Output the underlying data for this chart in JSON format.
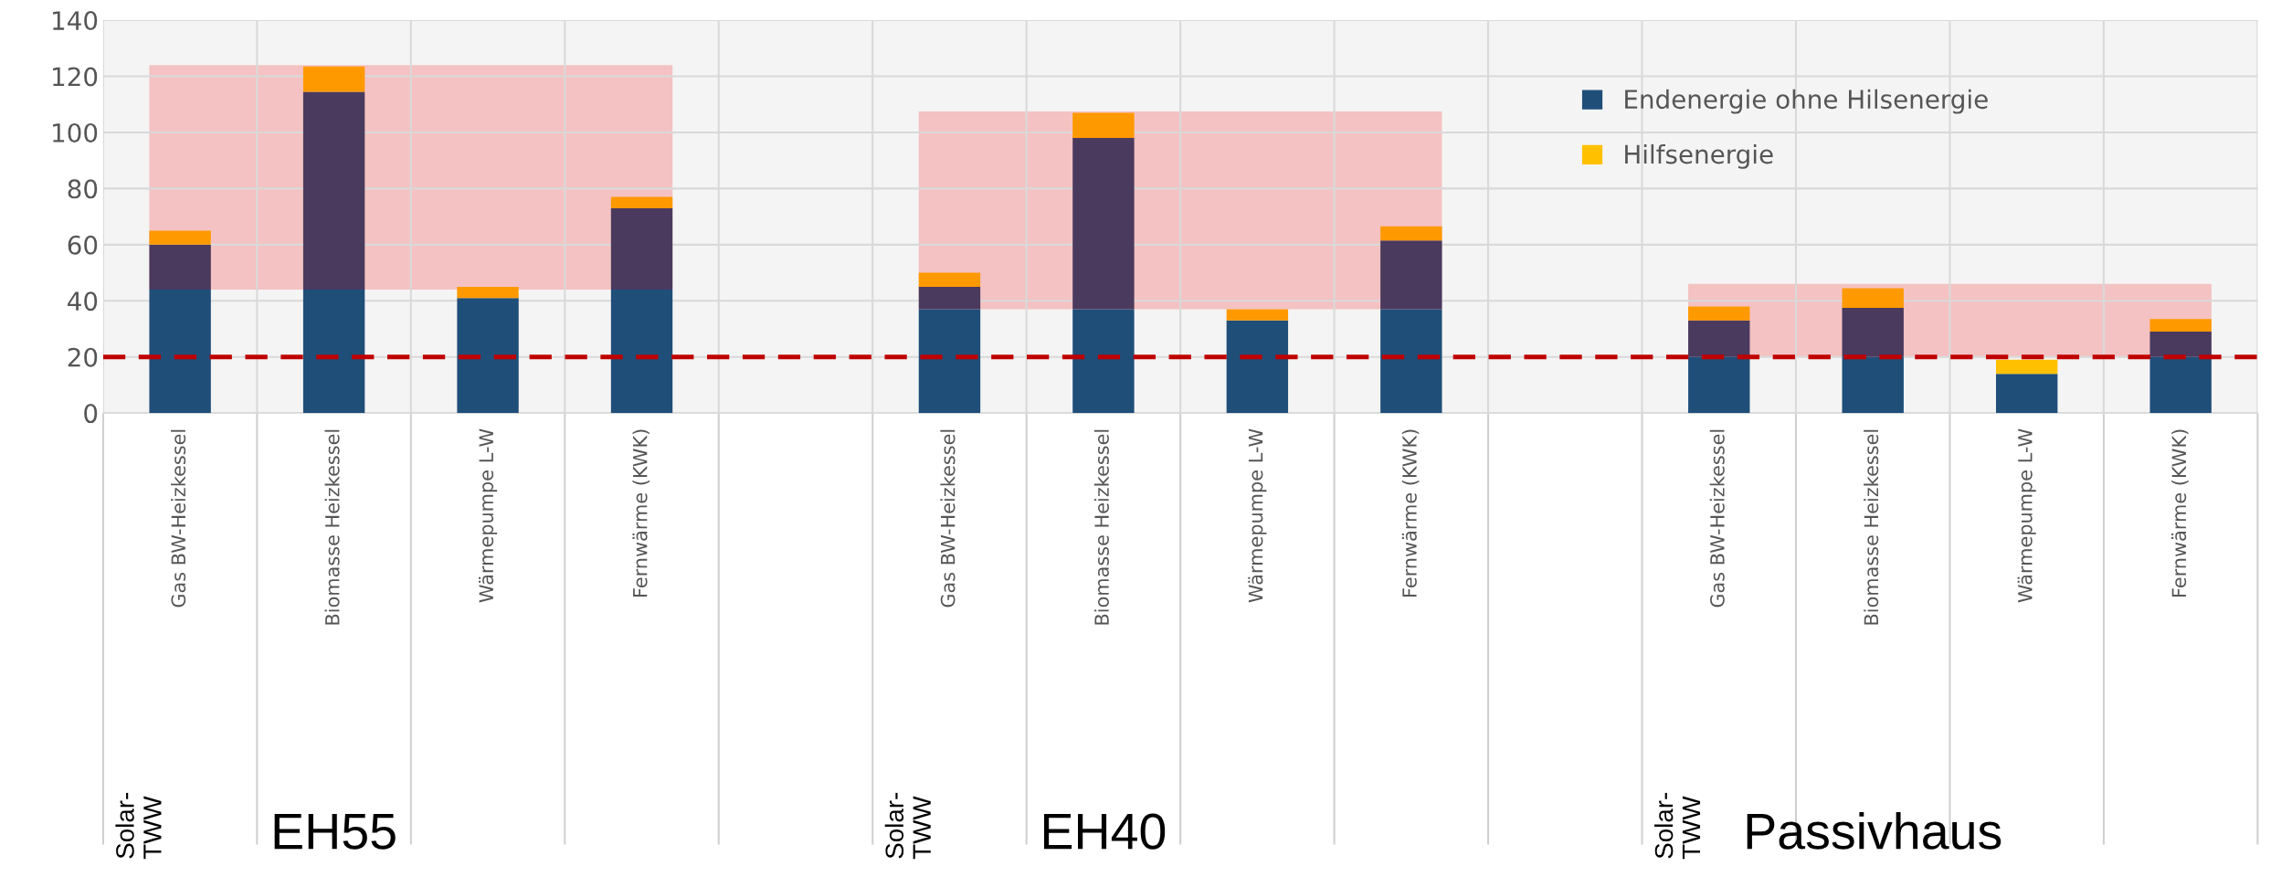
{
  "chart_data": {
    "type": "bar",
    "stacked": true,
    "categories": [
      "Gas BW-Heizkessel",
      "Biomasse Heizkessel",
      "Wärmepumpe L-W",
      "Fernwärme (KWK)",
      null,
      "Gas BW-Heizkessel",
      "Biomasse Heizkessel",
      "Wärmepumpe L-W",
      "Fernwärme (KWK)",
      null,
      "Gas BW-Heizkessel",
      "Biomasse Heizkessel",
      "Wärmepumpe L-W",
      "Fernwärme (KWK)"
    ],
    "series": [
      {
        "name": "Endenergie ohne Hilsenergie",
        "color": "#1f4e79",
        "values": [
          44,
          44,
          41,
          44,
          null,
          37,
          37,
          33,
          37,
          null,
          20,
          20,
          14,
          20
        ]
      },
      {
        "color": "#4a3a5e",
        "values": [
          16,
          70.5,
          0,
          29,
          null,
          8,
          61,
          0,
          24.5,
          null,
          13,
          17.5,
          0,
          9
        ]
      },
      {
        "name": "Hilfsenergie",
        "color": "#ffc000",
        "colors": [
          "#ff9900",
          "#ff9900",
          "#ff9900",
          "#ff9900",
          "#ff9900",
          "#ff9900",
          "#ff9900",
          "#ff9900",
          "#ff9900",
          "#ff9900",
          "#ff9900",
          "#ff9900",
          "#ffc000",
          "#ff9900"
        ],
        "values": [
          5,
          9,
          4,
          4,
          null,
          5,
          9,
          4,
          5,
          null,
          5,
          7,
          5,
          4.5
        ]
      }
    ],
    "ylim": [
      0,
      140
    ],
    "yticks": [
      0,
      20,
      40,
      60,
      80,
      100,
      120,
      140
    ],
    "grid": true,
    "legend": "top right",
    "ref_lines": [
      {
        "axis": "y",
        "value": 20,
        "color": "#c00000",
        "line_style": "dashed"
      }
    ],
    "bands": [
      {
        "axis": "y",
        "from": 44,
        "to": 124,
        "color": "#f4a0a0"
      },
      {
        "axis": "y",
        "from": 37,
        "to": 107.5,
        "color": "#f4a0a0"
      },
      {
        "axis": "y",
        "from": 20,
        "to": 46,
        "color": "#f4a0a0"
      }
    ],
    "annotations": [
      "Solar-\nTWW",
      "EH55",
      "Solar-\nTWW",
      "EH40",
      "Solar-\nTWW",
      "Passivhaus"
    ]
  }
}
